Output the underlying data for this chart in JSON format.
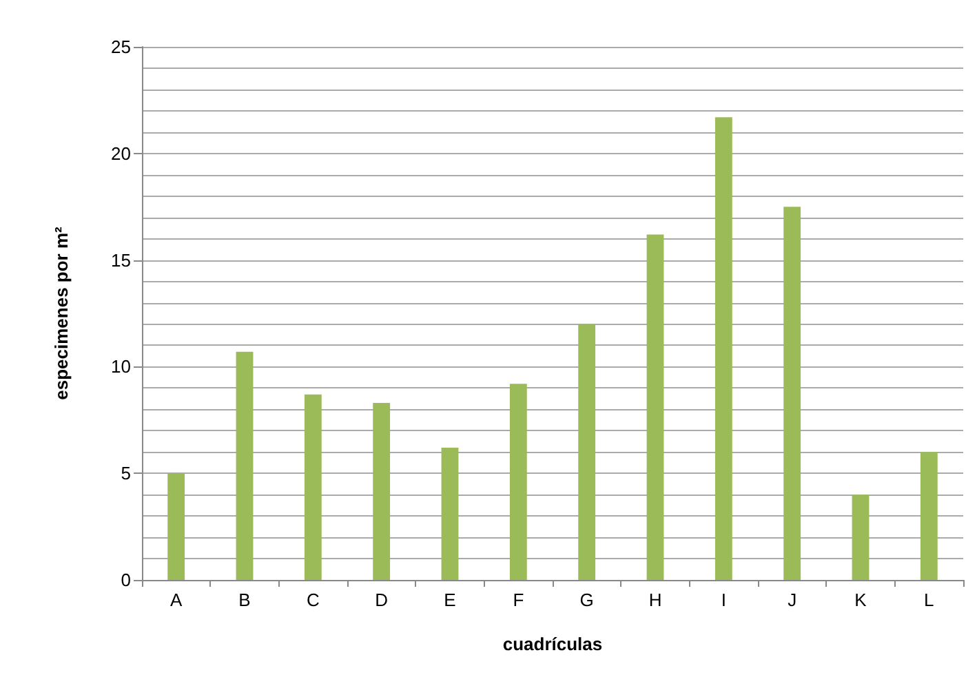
{
  "chart_data": {
    "type": "bar",
    "xlabel": "cuadrículas",
    "ylabel": "especimenes por m²",
    "categories": [
      "A",
      "B",
      "C",
      "D",
      "E",
      "F",
      "G",
      "H",
      "I",
      "J",
      "K",
      "L"
    ],
    "values": [
      5,
      10.7,
      8.7,
      8.3,
      6.2,
      9.2,
      12,
      16.2,
      21.7,
      17.5,
      4,
      6
    ],
    "color": "#9bbb59",
    "ylim": [
      0,
      25
    ],
    "yticks": [
      0,
      {
        "value": 1,
        "label": null
      },
      {
        "value": 2,
        "label": null
      },
      {
        "value": 3,
        "label": null
      },
      {
        "value": 4,
        "label": null
      },
      5,
      {
        "value": 6,
        "label": null
      },
      {
        "value": 7,
        "label": null
      },
      {
        "value": 8,
        "label": null
      },
      {
        "value": 9,
        "label": null
      },
      10,
      {
        "value": 11,
        "label": null
      },
      {
        "value": 12,
        "label": null
      },
      {
        "value": 13,
        "label": null
      },
      {
        "value": 14,
        "label": null
      },
      15,
      {
        "value": 16,
        "label": null
      },
      {
        "value": 17,
        "label": null
      },
      {
        "value": 18,
        "label": null
      },
      {
        "value": 19,
        "label": null
      },
      20,
      {
        "value": 21,
        "label": null
      },
      {
        "value": 22,
        "label": null
      },
      {
        "value": 23,
        "label": null
      },
      {
        "value": 24,
        "label": null
      },
      25
    ],
    "grid": "y"
  }
}
